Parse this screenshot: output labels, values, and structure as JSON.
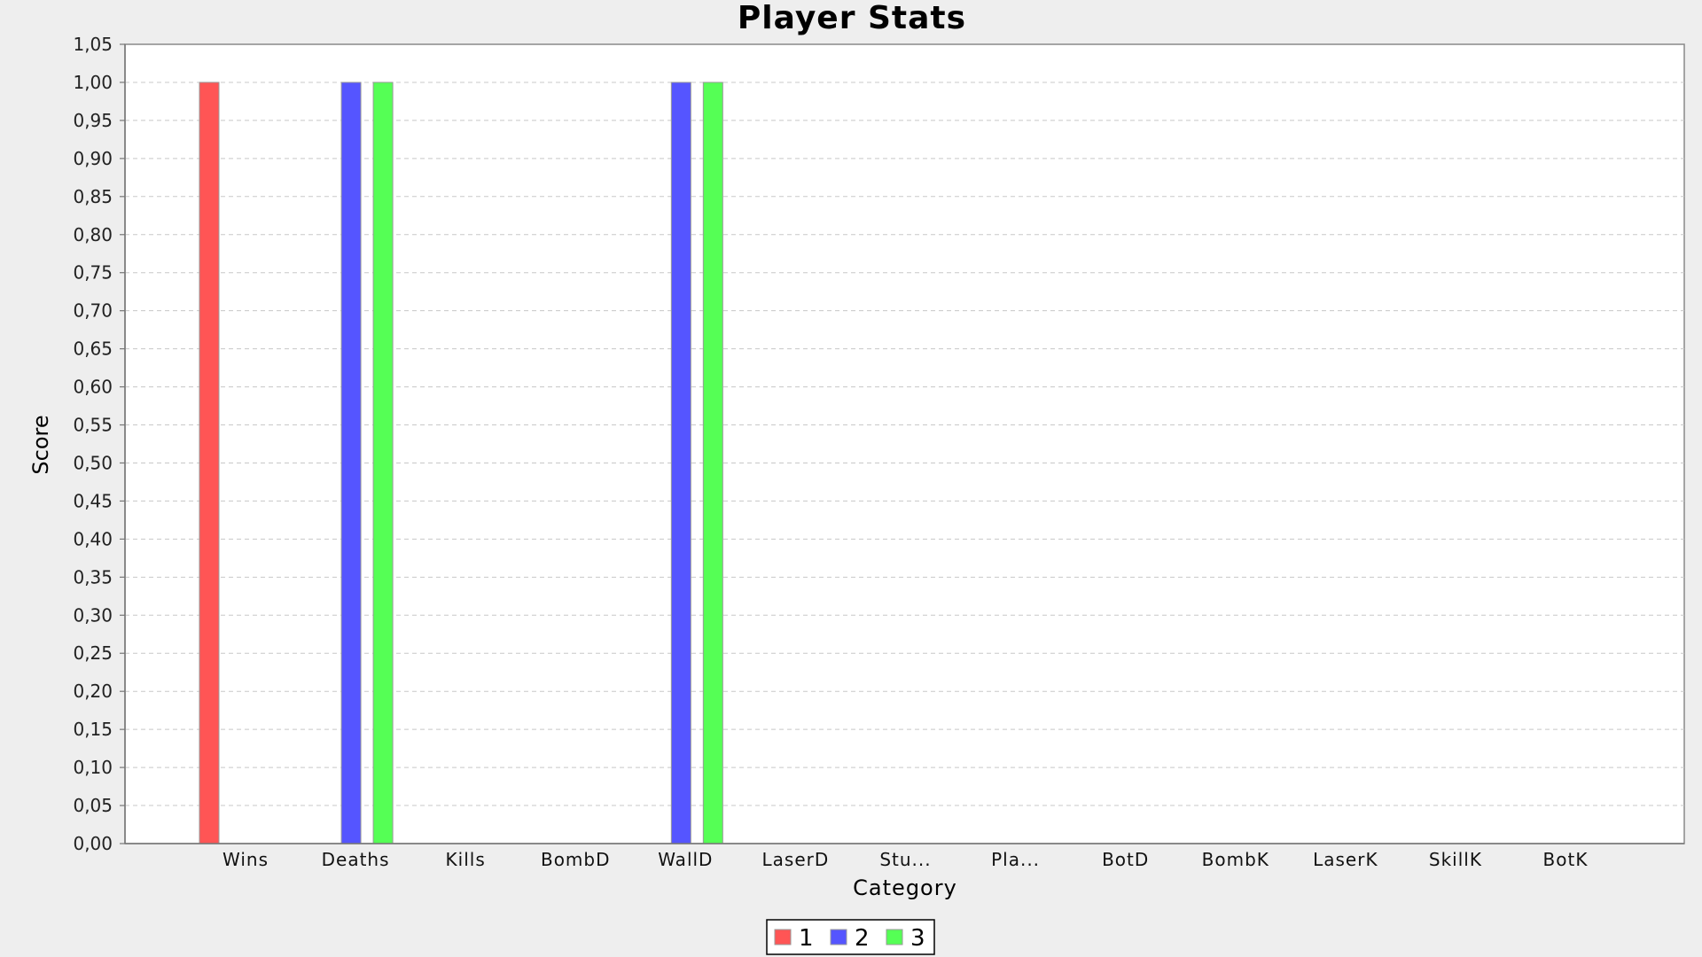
{
  "chart_data": {
    "type": "bar",
    "title": "Player Stats",
    "xlabel": "Category",
    "ylabel": "Score",
    "categories": [
      "Wins",
      "Deaths",
      "Kills",
      "BombD",
      "WallD",
      "LaserD",
      "Stu...",
      "Pla...",
      "BotD",
      "BombK",
      "LaserK",
      "SkillK",
      "BotK"
    ],
    "series": [
      {
        "name": "1",
        "color": "#ff5555",
        "values": [
          1,
          0,
          0,
          0,
          0,
          0,
          0,
          0,
          0,
          0,
          0,
          0,
          0
        ]
      },
      {
        "name": "2",
        "color": "#5555ff",
        "values": [
          0,
          1,
          0,
          0,
          1,
          0,
          0,
          0,
          0,
          0,
          0,
          0,
          0
        ]
      },
      {
        "name": "3",
        "color": "#55ff55",
        "values": [
          0,
          1,
          0,
          0,
          1,
          0,
          0,
          0,
          0,
          0,
          0,
          0,
          0
        ]
      }
    ],
    "ylim": [
      0,
      1.05
    ],
    "yticks": [
      "0,00",
      "0,05",
      "0,10",
      "0,15",
      "0,20",
      "0,25",
      "0,30",
      "0,35",
      "0,40",
      "0,45",
      "0,50",
      "0,55",
      "0,60",
      "0,65",
      "0,70",
      "0,75",
      "0,80",
      "0,85",
      "0,90",
      "0,95",
      "1,00",
      "1,05"
    ],
    "grid": true,
    "legend_position": "bottom-center"
  }
}
